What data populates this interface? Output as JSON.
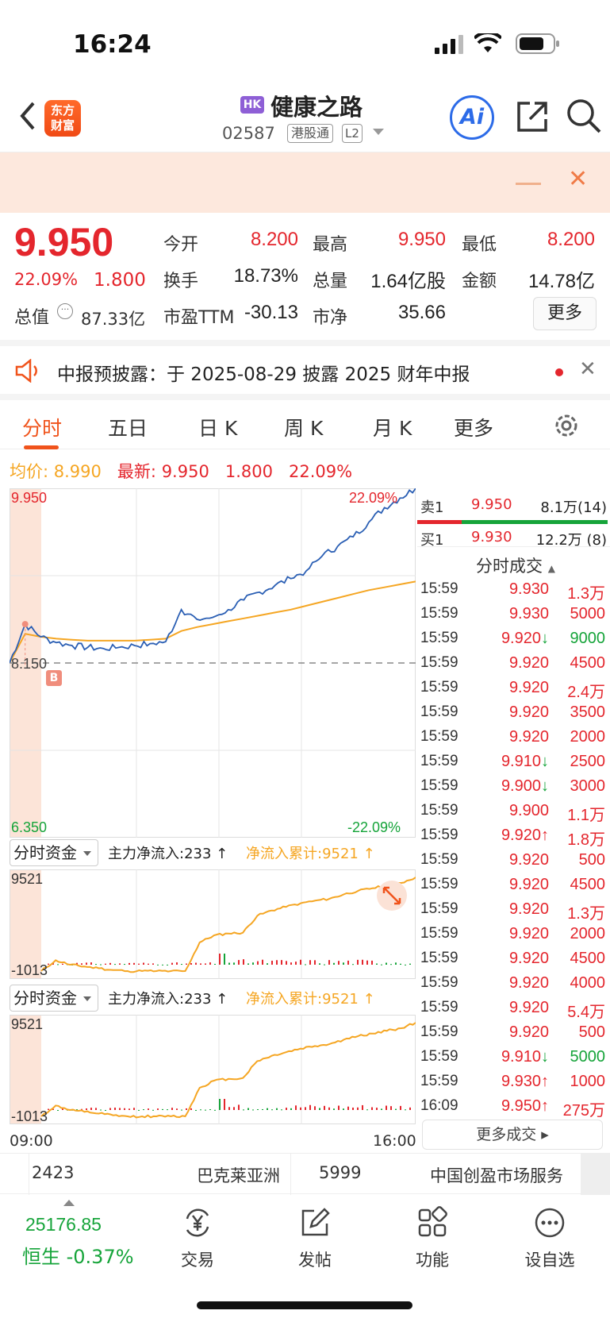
{
  "status_bar": {
    "time": "16:24"
  },
  "header": {
    "logo_text_line1": "东方",
    "logo_text_line2": "财富",
    "market_badge": "HK",
    "stock_name": "健康之路",
    "stock_code": "02587",
    "connect_badge": "港股通",
    "level_badge": "L2",
    "ai_label": "Ai"
  },
  "quote": {
    "price": "9.950",
    "change_pct": "22.09%",
    "change": "1.800",
    "fields": [
      {
        "label": "今开",
        "value": "8.200",
        "color": "#e4262d"
      },
      {
        "label": "最高",
        "value": "9.950",
        "color": "#e4262d"
      },
      {
        "label": "最低",
        "value": "8.200",
        "color": "#e4262d"
      },
      {
        "label": "换手",
        "value": "18.73%",
        "color": "#222222"
      },
      {
        "label": "总量",
        "value": "1.64亿股",
        "color": "#222222"
      },
      {
        "label": "金额",
        "value": "14.78亿",
        "color": "#222222"
      },
      {
        "label": "市盈TTM",
        "value": "-30.13",
        "color": "#222222"
      },
      {
        "label": "市净",
        "value": "35.66",
        "color": "#222222"
      }
    ],
    "market_cap_label": "总值",
    "market_cap_value": "87.33亿",
    "more_label": "更多"
  },
  "notice": {
    "text": "中报预披露：于 2025-08-29 披露 2025 财年中报"
  },
  "tabs": [
    "分时",
    "五日",
    "日 K",
    "周 K",
    "月 K",
    "更多"
  ],
  "avg_row": {
    "avg_label": "均价:",
    "avg_value": "8.990",
    "latest_label": "最新:",
    "latest_value": "9.950",
    "change": "1.800",
    "pct": "22.09%"
  },
  "chart_data": [
    {
      "type": "line",
      "title": "分时",
      "y_top_label": "9.950",
      "y_bottom_label": "6.350",
      "pct_top_label": "22.09%",
      "pct_bottom_label": "-22.09%",
      "prev_close_label": "8.150",
      "buy_marker": "B",
      "ylim": [
        6.35,
        9.95
      ],
      "x_start": "09:00",
      "x_end": "16:00",
      "series": [
        {
          "color": "#2b5fb4",
          "values": [
            8.15,
            8.55,
            8.42,
            8.36,
            8.33,
            8.31,
            8.3,
            8.31,
            8.33,
            8.35,
            8.37,
            8.7,
            8.6,
            8.62,
            8.7,
            8.8,
            8.88,
            8.95,
            9.02,
            9.1,
            9.25,
            9.35,
            9.45,
            9.6,
            9.75,
            9.85,
            9.95
          ]
        },
        {
          "color": "#f5a623",
          "values": [
            8.15,
            8.45,
            8.42,
            8.4,
            8.39,
            8.38,
            8.38,
            8.38,
            8.38,
            8.39,
            8.4,
            8.48,
            8.52,
            8.55,
            8.58,
            8.61,
            8.64,
            8.67,
            8.7,
            8.74,
            8.78,
            8.82,
            8.86,
            8.9,
            8.93,
            8.96,
            8.99
          ]
        }
      ]
    },
    {
      "type": "area",
      "title": "分时资金",
      "y_top_label": "9521",
      "y_bottom_label": "-1013",
      "ylim": [
        -1013,
        9521
      ],
      "series": [
        {
          "color": "#f5a623",
          "values": [
            -1013,
            200,
            -300,
            -500,
            -700,
            -900,
            -1013,
            -1013,
            -1013,
            -1013,
            -1013,
            2200,
            3000,
            3200,
            3300,
            5200,
            5800,
            6200,
            6600,
            6900,
            7100,
            7600,
            8000,
            8300,
            8600,
            8900,
            9521
          ]
        }
      ]
    },
    {
      "type": "area",
      "title": "分时资金",
      "y_top_label": "9521",
      "y_bottom_label": "-1013",
      "ylim": [
        -1013,
        9521
      ],
      "series": [
        {
          "color": "#f5a623",
          "values": [
            -1013,
            200,
            -300,
            -500,
            -700,
            -900,
            -1013,
            -1013,
            -1013,
            -1013,
            -1013,
            2200,
            3000,
            3200,
            3300,
            5200,
            5800,
            6200,
            6600,
            6900,
            7100,
            7600,
            8000,
            8300,
            8600,
            8900,
            9521
          ]
        }
      ]
    }
  ],
  "fund_panels": [
    {
      "select_label": "分时资金",
      "net_inflow": "主力净流入:233 ↑",
      "cumulative": "净流入累计:9521 ↑"
    },
    {
      "select_label": "分时资金",
      "net_inflow": "主力净流入:233 ↑",
      "cumulative": "净流入累计:9521 ↑"
    }
  ],
  "orderbook": {
    "ask": {
      "label": "卖1",
      "price": "9.950",
      "volume": "8.1万(14)"
    },
    "bid": {
      "label": "买1",
      "price": "9.930",
      "volume": "12.2万 (8)"
    }
  },
  "trades": {
    "title": "分时成交",
    "rows": [
      {
        "time": "15:59",
        "price": "9.930",
        "arrow": "",
        "vol": "1.3万",
        "vcolor": "#e4262d"
      },
      {
        "time": "15:59",
        "price": "9.930",
        "arrow": "",
        "vol": "5000",
        "vcolor": "#e4262d"
      },
      {
        "time": "15:59",
        "price": "9.920",
        "arrow": "↓",
        "vol": "9000",
        "vcolor": "#16a43a"
      },
      {
        "time": "15:59",
        "price": "9.920",
        "arrow": "",
        "vol": "4500",
        "vcolor": "#e4262d"
      },
      {
        "time": "15:59",
        "price": "9.920",
        "arrow": "",
        "vol": "2.4万",
        "vcolor": "#e4262d"
      },
      {
        "time": "15:59",
        "price": "9.920",
        "arrow": "",
        "vol": "3500",
        "vcolor": "#e4262d"
      },
      {
        "time": "15:59",
        "price": "9.920",
        "arrow": "",
        "vol": "2000",
        "vcolor": "#e4262d"
      },
      {
        "time": "15:59",
        "price": "9.910",
        "arrow": "↓",
        "vol": "2500",
        "vcolor": "#e4262d"
      },
      {
        "time": "15:59",
        "price": "9.900",
        "arrow": "↓",
        "vol": "3000",
        "vcolor": "#e4262d"
      },
      {
        "time": "15:59",
        "price": "9.900",
        "arrow": "",
        "vol": "1.1万",
        "vcolor": "#e4262d"
      },
      {
        "time": "15:59",
        "price": "9.920",
        "arrow": "↑",
        "vol": "1.8万",
        "vcolor": "#e4262d"
      },
      {
        "time": "15:59",
        "price": "9.920",
        "arrow": "",
        "vol": "500",
        "vcolor": "#e4262d"
      },
      {
        "time": "15:59",
        "price": "9.920",
        "arrow": "",
        "vol": "4500",
        "vcolor": "#e4262d"
      },
      {
        "time": "15:59",
        "price": "9.920",
        "arrow": "",
        "vol": "1.3万",
        "vcolor": "#e4262d"
      },
      {
        "time": "15:59",
        "price": "9.920",
        "arrow": "",
        "vol": "2000",
        "vcolor": "#e4262d"
      },
      {
        "time": "15:59",
        "price": "9.920",
        "arrow": "",
        "vol": "4500",
        "vcolor": "#e4262d"
      },
      {
        "time": "15:59",
        "price": "9.920",
        "arrow": "",
        "vol": "4000",
        "vcolor": "#e4262d"
      },
      {
        "time": "15:59",
        "price": "9.920",
        "arrow": "",
        "vol": "5.4万",
        "vcolor": "#e4262d"
      },
      {
        "time": "15:59",
        "price": "9.920",
        "arrow": "",
        "vol": "500",
        "vcolor": "#e4262d"
      },
      {
        "time": "15:59",
        "price": "9.910",
        "arrow": "↓",
        "vol": "5000",
        "vcolor": "#16a43a"
      },
      {
        "time": "15:59",
        "price": "9.930",
        "arrow": "↑",
        "vol": "1000",
        "vcolor": "#e4262d"
      },
      {
        "time": "16:09",
        "price": "9.950",
        "arrow": "↑",
        "vol": "275万",
        "vcolor": "#e4262d"
      }
    ],
    "more_label": "更多成交 ▸"
  },
  "ticker": [
    {
      "code": "2423",
      "name": "巴克莱亚洲"
    },
    {
      "code": "5999",
      "name": "中国创盈市场服务"
    }
  ],
  "bottom_bar": {
    "index_value": "25176.85",
    "index_name": "恒生 -0.37%",
    "items": [
      {
        "label": "交易",
        "icon": "yen-exchange-icon"
      },
      {
        "label": "发帖",
        "icon": "edit-icon"
      },
      {
        "label": "功能",
        "icon": "apps-grid-icon"
      },
      {
        "label": "设自选",
        "icon": "more-dots-icon"
      }
    ]
  },
  "colors": {
    "up": "#e4262d",
    "down": "#16a43a",
    "accent": "#f0531b",
    "avg": "#f5a623",
    "line": "#2b5fb4"
  }
}
